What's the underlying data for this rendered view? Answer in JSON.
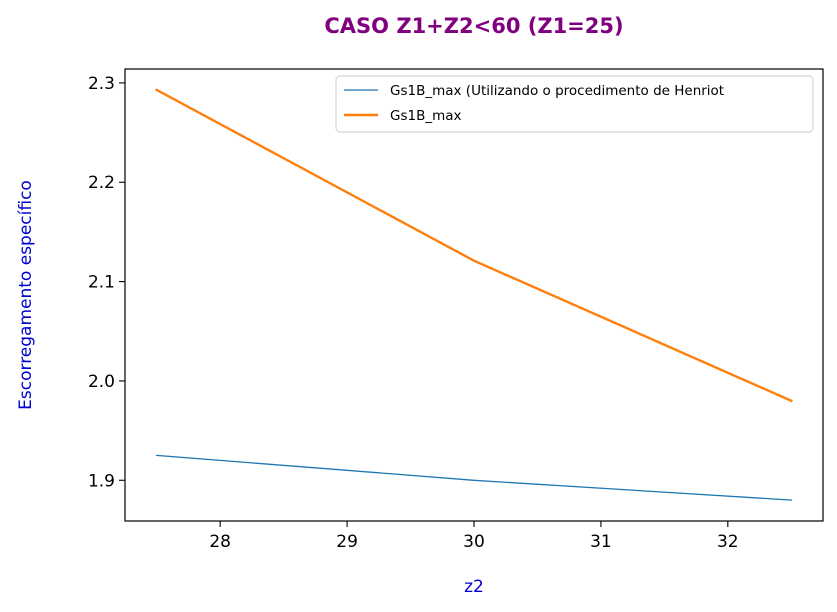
{
  "chart_data": {
    "type": "line",
    "title": "CASO Z1+Z2<60 (Z1=25)",
    "title_color": "#800080",
    "xlabel": "z2",
    "ylabel": "Escorregamento específico",
    "label_color": "#0000cd",
    "xlim": [
      27.25,
      32.75
    ],
    "ylim": [
      1.859,
      2.314
    ],
    "x_ticks": [
      "28",
      "29",
      "30",
      "31",
      "32"
    ],
    "y_ticks": [
      "1.9",
      "2.0",
      "2.1",
      "2.2",
      "2.3"
    ],
    "grid": false,
    "legend_position": "top-right",
    "x": [
      27.5,
      30,
      32.5
    ],
    "series": [
      {
        "name": "Gs1B_max (Utilizando o procedimento de Henriot",
        "color": "#1f77b4",
        "width": "thin",
        "values": [
          1.925,
          1.9,
          1.88
        ]
      },
      {
        "name": "Gs1B_max",
        "color": "#ff7f0e",
        "width": "thick",
        "values": [
          2.293,
          2.121,
          1.98
        ]
      }
    ]
  }
}
